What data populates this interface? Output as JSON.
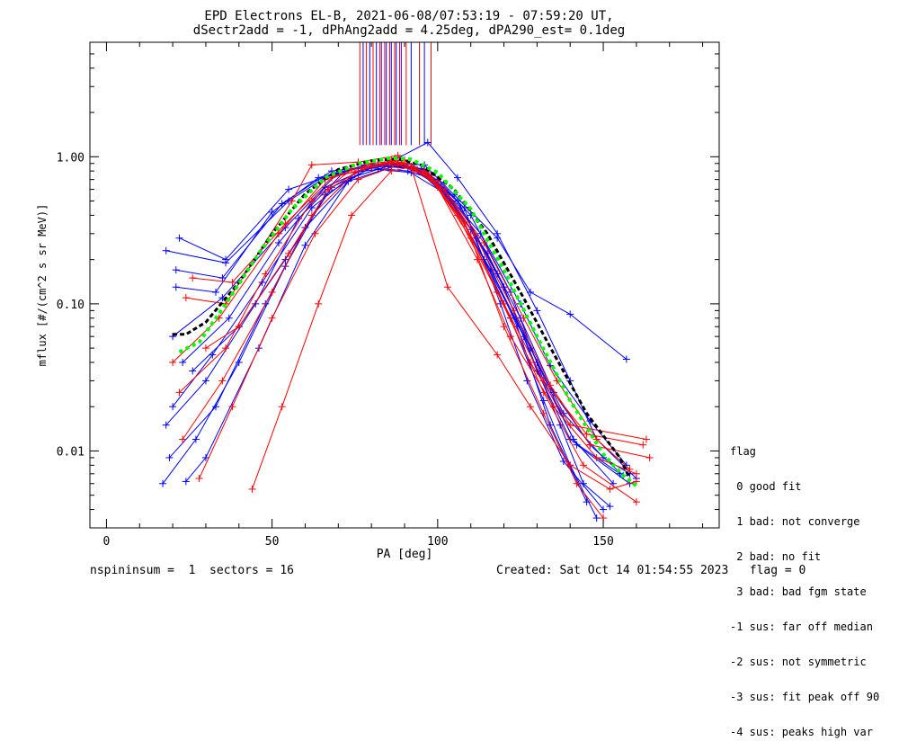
{
  "chart_data": {
    "type": "line",
    "title": "EPD Electrons EL-B, 2021-06-08/07:53:19 - 07:59:20 UT,",
    "subtitle": "dSectr2add = -1, dPhAng2add = 4.25deg, dPA290_est=   0.1deg",
    "xlabel": "PA [deg]",
    "ylabel": "mflux [#/(cm^2 s sr MeV)]",
    "xlim": [
      -5,
      185
    ],
    "ylim": [
      0.003,
      6.0
    ],
    "yscale": "log",
    "x_ticks": [
      0,
      50,
      100,
      150
    ],
    "y_ticks": [
      {
        "value": 0.01,
        "label": "0.01"
      },
      {
        "value": 0.1,
        "label": "0.10"
      },
      {
        "value": 1.0,
        "label": "1.00"
      }
    ],
    "vlines": {
      "ymin": 1.2,
      "ymax": 6.0,
      "red": [
        76.5,
        78.5,
        80.5,
        82.5,
        84,
        85.5,
        87,
        88.5,
        90.5,
        94.5,
        98
      ],
      "blue": [
        77.5,
        79.5,
        81.5,
        83,
        84.5,
        86,
        87.5,
        89,
        92,
        96
      ]
    },
    "series": [
      {
        "color": "#0000ff",
        "values": [
          [
            18,
            0.23
          ],
          [
            36,
            0.19
          ],
          [
            55,
            0.5
          ],
          [
            66,
            0.72
          ],
          [
            78,
            0.88
          ],
          [
            88,
            0.9
          ],
          [
            96,
            0.88
          ],
          [
            105,
            0.55
          ],
          [
            118,
            0.28
          ],
          [
            128,
            0.12
          ],
          [
            140,
            0.085
          ],
          [
            157,
            0.042
          ]
        ]
      },
      {
        "color": "#0000ff",
        "values": [
          [
            20,
            0.06
          ],
          [
            35,
            0.11
          ],
          [
            54,
            0.33
          ],
          [
            70,
            0.78
          ],
          [
            82,
            0.88
          ],
          [
            92,
            0.86
          ],
          [
            102,
            0.6
          ],
          [
            115,
            0.22
          ],
          [
            125,
            0.08
          ],
          [
            135,
            0.025
          ],
          [
            146,
            0.011
          ],
          [
            156,
            0.0068
          ]
        ]
      },
      {
        "color": "#0000ff",
        "values": [
          [
            17,
            0.006
          ],
          [
            27,
            0.012
          ],
          [
            40,
            0.04
          ],
          [
            54,
            0.18
          ],
          [
            66,
            0.55
          ],
          [
            80,
            0.85
          ],
          [
            90,
            0.9
          ],
          [
            100,
            0.68
          ],
          [
            112,
            0.28
          ],
          [
            124,
            0.07
          ],
          [
            134,
            0.015
          ],
          [
            145,
            0.0045
          ]
        ]
      },
      {
        "color": "#0000ff",
        "values": [
          [
            18,
            0.015
          ],
          [
            30,
            0.03
          ],
          [
            45,
            0.1
          ],
          [
            58,
            0.38
          ],
          [
            72,
            0.8
          ],
          [
            85,
            0.9
          ],
          [
            95,
            0.83
          ],
          [
            107,
            0.45
          ],
          [
            120,
            0.13
          ],
          [
            130,
            0.035
          ],
          [
            140,
            0.012
          ],
          [
            155,
            0.007
          ]
        ]
      },
      {
        "color": "#0000ff",
        "values": [
          [
            22,
            0.28
          ],
          [
            36,
            0.2
          ],
          [
            55,
            0.6
          ],
          [
            68,
            0.75
          ],
          [
            82,
            0.82
          ],
          [
            92,
            0.78
          ],
          [
            100,
            0.7
          ],
          [
            110,
            0.4
          ],
          [
            122,
            0.12
          ],
          [
            132,
            0.03
          ],
          [
            142,
            0.011
          ],
          [
            158,
            0.006
          ]
        ]
      },
      {
        "color": "#0000ff",
        "values": [
          [
            19,
            0.009
          ],
          [
            33,
            0.02
          ],
          [
            48,
            0.1
          ],
          [
            60,
            0.33
          ],
          [
            74,
            0.72
          ],
          [
            86,
            0.88
          ],
          [
            96,
            0.8
          ],
          [
            108,
            0.45
          ],
          [
            119,
            0.1
          ],
          [
            127,
            0.03
          ],
          [
            138,
            0.0085
          ],
          [
            150,
            0.004
          ]
        ]
      },
      {
        "color": "#0000ff",
        "values": [
          [
            23,
            0.04
          ],
          [
            37,
            0.08
          ],
          [
            52,
            0.26
          ],
          [
            66,
            0.62
          ],
          [
            80,
            0.86
          ],
          [
            93,
            0.85
          ],
          [
            104,
            0.5
          ],
          [
            116,
            0.17
          ],
          [
            128,
            0.05
          ],
          [
            138,
            0.018
          ],
          [
            150,
            0.009
          ],
          [
            158,
            0.007
          ]
        ]
      },
      {
        "color": "#0000ff",
        "values": [
          [
            21,
            0.13
          ],
          [
            33,
            0.12
          ],
          [
            50,
            0.42
          ],
          [
            64,
            0.72
          ],
          [
            78,
            0.86
          ],
          [
            90,
            0.88
          ],
          [
            101,
            0.62
          ],
          [
            113,
            0.3
          ],
          [
            125,
            0.1
          ],
          [
            134,
            0.038
          ],
          [
            146,
            0.016
          ],
          [
            157,
            0.008
          ]
        ]
      },
      {
        "color": "#0000ff",
        "values": [
          [
            20,
            0.02
          ],
          [
            32,
            0.045
          ],
          [
            47,
            0.14
          ],
          [
            62,
            0.45
          ],
          [
            76,
            0.8
          ],
          [
            88,
            0.9
          ],
          [
            98,
            0.75
          ],
          [
            110,
            0.32
          ],
          [
            122,
            0.08
          ],
          [
            132,
            0.022
          ],
          [
            140,
            0.008
          ],
          [
            148,
            0.0035
          ]
        ]
      },
      {
        "color": "#0000ff",
        "values": [
          [
            24,
            0.0062
          ],
          [
            30,
            0.009
          ],
          [
            46,
            0.05
          ],
          [
            60,
            0.25
          ],
          [
            73,
            0.68
          ],
          [
            86,
            0.85
          ],
          [
            96,
            0.82
          ],
          [
            106,
            0.5
          ],
          [
            118,
            0.16
          ],
          [
            130,
            0.04
          ],
          [
            141,
            0.012
          ],
          [
            153,
            0.006
          ]
        ]
      },
      {
        "color": "#0000ff",
        "values": [
          [
            21,
            0.17
          ],
          [
            35,
            0.15
          ],
          [
            53,
            0.48
          ],
          [
            68,
            0.8
          ],
          [
            84,
            0.88
          ],
          [
            97,
            1.25
          ],
          [
            106,
            0.72
          ],
          [
            118,
            0.3
          ],
          [
            130,
            0.09
          ],
          [
            140,
            0.03
          ],
          [
            148,
            0.012
          ],
          [
            160,
            0.0065
          ]
        ]
      },
      {
        "color": "#0000ff",
        "values": [
          [
            26,
            0.035
          ],
          [
            40,
            0.07
          ],
          [
            54,
            0.2
          ],
          [
            68,
            0.62
          ],
          [
            80,
            0.84
          ],
          [
            91,
            0.8
          ],
          [
            103,
            0.55
          ],
          [
            114,
            0.2
          ],
          [
            126,
            0.06
          ],
          [
            137,
            0.015
          ],
          [
            144,
            0.006
          ],
          [
            152,
            0.0042
          ]
        ]
      },
      {
        "color": "#ff0000",
        "values": [
          [
            20,
            0.04
          ],
          [
            34,
            0.08
          ],
          [
            52,
            0.3
          ],
          [
            66,
            0.7
          ],
          [
            80,
            0.9
          ],
          [
            90,
            0.95
          ],
          [
            100,
            0.62
          ],
          [
            112,
            0.2
          ],
          [
            122,
            0.06
          ],
          [
            135,
            0.02
          ],
          [
            148,
            0.009
          ],
          [
            160,
            0.007
          ]
        ]
      },
      {
        "color": "#ff0000",
        "values": [
          [
            24,
            0.11
          ],
          [
            36,
            0.1
          ],
          [
            56,
            0.5
          ],
          [
            62,
            0.88
          ],
          [
            76,
            0.92
          ],
          [
            88,
            1.02
          ],
          [
            98,
            0.72
          ],
          [
            108,
            0.35
          ],
          [
            120,
            0.1
          ],
          [
            132,
            0.03
          ],
          [
            145,
            0.013
          ],
          [
            162,
            0.011
          ]
        ]
      },
      {
        "color": "#ff0000",
        "values": [
          [
            28,
            0.0065
          ],
          [
            38,
            0.02
          ],
          [
            50,
            0.08
          ],
          [
            63,
            0.3
          ],
          [
            76,
            0.7
          ],
          [
            88,
            0.88
          ],
          [
            98,
            0.72
          ],
          [
            110,
            0.28
          ],
          [
            120,
            0.07
          ],
          [
            132,
            0.018
          ],
          [
            142,
            0.006
          ],
          [
            150,
            0.0035
          ]
        ]
      },
      {
        "color": "#ff0000",
        "values": [
          [
            22,
            0.025
          ],
          [
            36,
            0.05
          ],
          [
            48,
            0.16
          ],
          [
            62,
            0.5
          ],
          [
            74,
            0.82
          ],
          [
            86,
            0.92
          ],
          [
            96,
            0.8
          ],
          [
            106,
            0.4
          ],
          [
            118,
            0.12
          ],
          [
            128,
            0.04
          ],
          [
            140,
            0.015
          ],
          [
            163,
            0.012
          ]
        ]
      },
      {
        "color": "#ff0000",
        "values": [
          [
            44,
            0.0055
          ],
          [
            53,
            0.02
          ],
          [
            64,
            0.1
          ],
          [
            74,
            0.4
          ],
          [
            86,
            0.8
          ],
          [
            92,
            0.85
          ],
          [
            103,
            0.13
          ],
          [
            118,
            0.045
          ],
          [
            128,
            0.02
          ],
          [
            140,
            0.008
          ],
          [
            152,
            0.0055
          ],
          [
            160,
            0.0062
          ]
        ]
      },
      {
        "color": "#ff0000",
        "values": [
          [
            26,
            0.15
          ],
          [
            38,
            0.14
          ],
          [
            54,
            0.35
          ],
          [
            68,
            0.72
          ],
          [
            80,
            0.85
          ],
          [
            90,
            0.9
          ],
          [
            102,
            0.6
          ],
          [
            114,
            0.26
          ],
          [
            126,
            0.08
          ],
          [
            136,
            0.03
          ],
          [
            148,
            0.012
          ],
          [
            158,
            0.0075
          ]
        ]
      },
      {
        "color": "#ff0000",
        "values": [
          [
            23,
            0.012
          ],
          [
            35,
            0.03
          ],
          [
            50,
            0.12
          ],
          [
            62,
            0.4
          ],
          [
            75,
            0.78
          ],
          [
            86,
            0.95
          ],
          [
            97,
            0.78
          ],
          [
            108,
            0.36
          ],
          [
            120,
            0.1
          ],
          [
            132,
            0.025
          ],
          [
            144,
            0.008
          ],
          [
            160,
            0.0045
          ]
        ]
      },
      {
        "color": "#ff0000",
        "values": [
          [
            30,
            0.05
          ],
          [
            40,
            0.07
          ],
          [
            55,
            0.22
          ],
          [
            67,
            0.6
          ],
          [
            78,
            0.85
          ],
          [
            89,
            0.92
          ],
          [
            100,
            0.68
          ],
          [
            111,
            0.3
          ],
          [
            123,
            0.09
          ],
          [
            134,
            0.028
          ],
          [
            146,
            0.011
          ],
          [
            164,
            0.009
          ]
        ]
      },
      {
        "color": "#000000",
        "dashed": true,
        "width": 3,
        "values": [
          [
            20,
            0.062
          ],
          [
            24,
            0.062
          ],
          [
            30,
            0.075
          ],
          [
            40,
            0.14
          ],
          [
            50,
            0.3
          ],
          [
            60,
            0.56
          ],
          [
            70,
            0.82
          ],
          [
            80,
            0.94
          ],
          [
            88,
            0.97
          ],
          [
            95,
            0.88
          ],
          [
            105,
            0.6
          ],
          [
            115,
            0.3
          ],
          [
            125,
            0.12
          ],
          [
            135,
            0.046
          ],
          [
            145,
            0.018
          ],
          [
            155,
            0.009
          ],
          [
            158,
            0.0065
          ]
        ]
      },
      {
        "color": "#00ff00",
        "dashed": true,
        "width": 4,
        "values": [
          [
            22,
            0.047
          ],
          [
            28,
            0.055
          ],
          [
            36,
            0.1
          ],
          [
            46,
            0.22
          ],
          [
            56,
            0.44
          ],
          [
            66,
            0.72
          ],
          [
            76,
            0.9
          ],
          [
            86,
            0.98
          ],
          [
            92,
            0.96
          ],
          [
            100,
            0.78
          ],
          [
            110,
            0.44
          ],
          [
            120,
            0.17
          ],
          [
            130,
            0.06
          ],
          [
            140,
            0.022
          ],
          [
            150,
            0.0095
          ],
          [
            156,
            0.0068
          ],
          [
            160,
            0.0058
          ]
        ]
      }
    ]
  },
  "footer": {
    "left": "nspininsum =  1  sectors = 16",
    "right": "Created: Sat Oct 14 01:54:55 2023   flag = 0"
  },
  "legend": {
    "title": "flag",
    "items": [
      " 0 good fit",
      " 1 bad: not converge",
      " 2 bad: no fit",
      " 3 bad: bad fgm state",
      "-1 sus: far off median",
      "-2 sus: not symmetric",
      "-3 sus: fit peak off 90",
      "-4 sus: peaks high var"
    ]
  }
}
